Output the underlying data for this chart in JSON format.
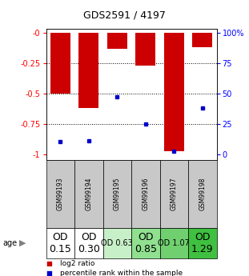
{
  "title": "GDS2591 / 4197",
  "samples": [
    "GSM99193",
    "GSM99194",
    "GSM99195",
    "GSM99196",
    "GSM99197",
    "GSM99198"
  ],
  "log2_ratio": [
    -0.5,
    -0.62,
    -0.13,
    -0.27,
    -0.98,
    -0.12
  ],
  "percentile_rank": [
    10,
    11,
    47,
    25,
    2,
    38
  ],
  "od_values": [
    "OD\n0.15",
    "OD\n0.30",
    "OD 0.63",
    "OD\n0.85",
    "OD 1.07",
    "OD\n1.29"
  ],
  "od_bg_colors": [
    "#ffffff",
    "#ffffff",
    "#c8f0c8",
    "#90e090",
    "#70d070",
    "#40c040"
  ],
  "od_fontsize": [
    9,
    9,
    7,
    9,
    7,
    9
  ],
  "sample_bg_color": "#c8c8c8",
  "bar_color": "#cc0000",
  "blue_color": "#0000cc",
  "left_yticks": [
    0,
    -0.25,
    -0.5,
    -0.75,
    -1.0
  ],
  "left_yticklabels": [
    "-0",
    "-0.25",
    "-0.5",
    "-0.75",
    "-1"
  ],
  "right_yticks": [
    -1.0,
    -0.75,
    -0.5,
    -0.25,
    0.0
  ],
  "right_yticklabels": [
    "0",
    "25",
    "50",
    "75",
    "100%"
  ],
  "legend_log2": "log2 ratio",
  "legend_pct": "percentile rank within the sample",
  "age_label": "age"
}
